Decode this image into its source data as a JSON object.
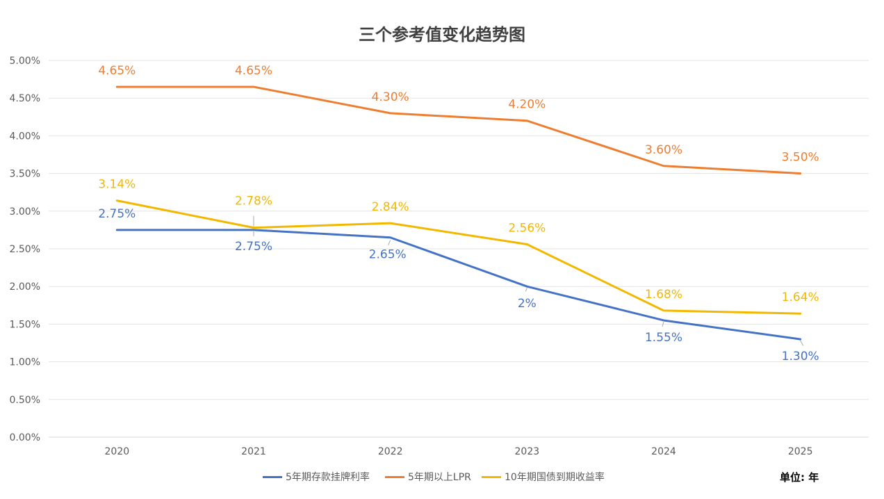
{
  "chart_data": {
    "type": "line",
    "title": "三个参考值变化趋势图",
    "x": [
      "2020",
      "2021",
      "2022",
      "2023",
      "2024",
      "2025"
    ],
    "ylim": [
      0,
      5
    ],
    "yticks": [
      "0.00%",
      "0.50%",
      "1.00%",
      "1.50%",
      "2.00%",
      "2.50%",
      "3.00%",
      "3.50%",
      "4.00%",
      "4.50%",
      "5.00%"
    ],
    "grid": true,
    "legend_position": "bottom",
    "series": [
      {
        "name": "5年期存款挂牌利率",
        "color": "#4472C4",
        "values": [
          2.75,
          2.75,
          2.65,
          2.0,
          1.55,
          1.3
        ],
        "labels": [
          "2.75%",
          "2.75%",
          "2.65%",
          "2%",
          "1.55%",
          "1.30%"
        ]
      },
      {
        "name": "5年期以上LPR",
        "color": "#ED7D31",
        "values": [
          4.65,
          4.65,
          4.3,
          4.2,
          3.6,
          3.5
        ],
        "labels": [
          "4.65%",
          "4.65%",
          "4.30%",
          "4.20%",
          "3.60%",
          "3.50%"
        ]
      },
      {
        "name": "10年期国债到期收益率",
        "color": "#F2B800",
        "values": [
          3.14,
          2.78,
          2.84,
          2.56,
          1.68,
          1.64
        ],
        "labels": [
          "3.14%",
          "2.78%",
          "2.84%",
          "2.56%",
          "1.68%",
          "1.64%"
        ]
      }
    ],
    "unit_note": "单位: 年"
  }
}
